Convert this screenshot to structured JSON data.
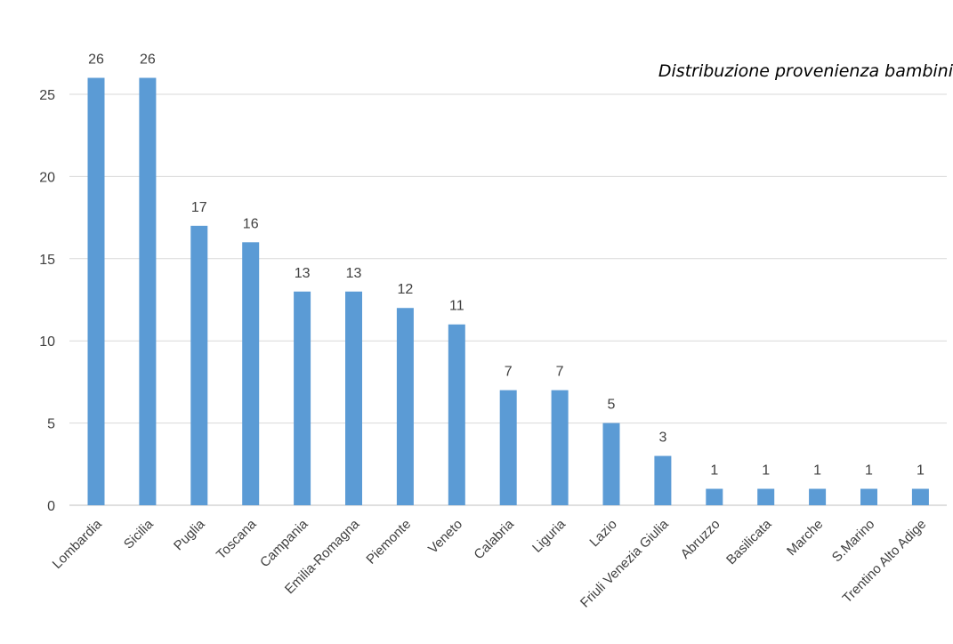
{
  "chart_data": {
    "type": "bar",
    "title": "Distribuzione provenienza bambini",
    "xlabel": "",
    "ylabel": "",
    "categories": [
      "Lombardia",
      "Sicilia",
      "Puglia",
      "Toscana",
      "Campania",
      "Emilia-Romagna",
      "Piemonte",
      "Veneto",
      "Calabria",
      "Liguria",
      "Lazio",
      "Friuli Venezia Giulia",
      "Abruzzo",
      "Basilicata",
      "Marche",
      "S.Marino",
      "Trentino Alto Adige"
    ],
    "values": [
      26,
      26,
      17,
      16,
      13,
      13,
      12,
      11,
      7,
      7,
      5,
      3,
      1,
      1,
      1,
      1,
      1
    ],
    "ylim": [
      0,
      30
    ],
    "yticks": [
      0,
      5,
      10,
      15,
      20,
      25
    ],
    "grid": true,
    "legend": "none",
    "data_labels": true,
    "colors": {
      "bar": "#5b9bd5",
      "grid": "#d9d9d9",
      "text": "#404040"
    }
  }
}
